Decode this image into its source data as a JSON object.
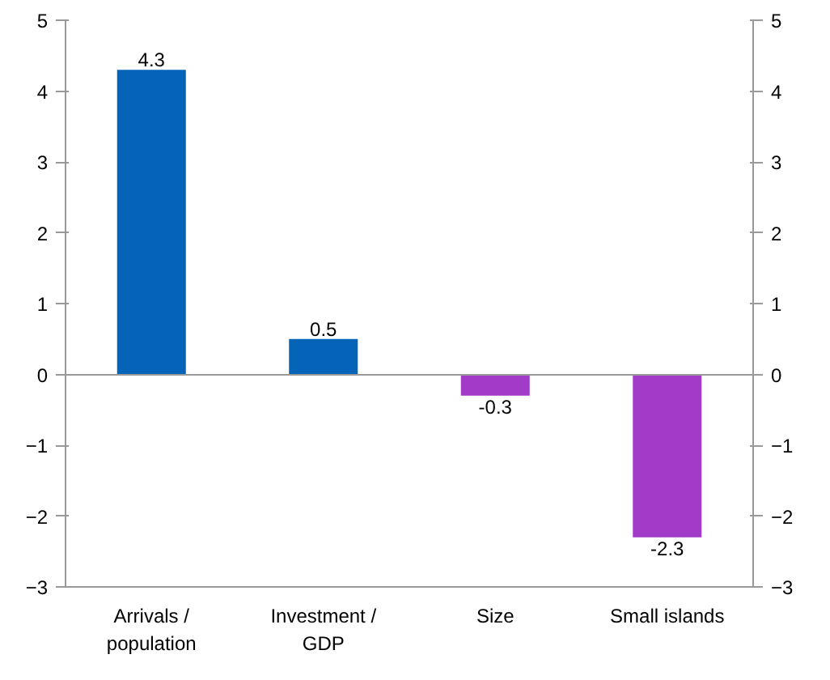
{
  "chart_data": {
    "type": "bar",
    "categories": [
      "Arrivals / population",
      "Investment / GDP",
      "Size",
      "Small islands"
    ],
    "values": [
      4.3,
      0.5,
      -0.3,
      -2.3
    ],
    "colors": [
      "#0563b8",
      "#0563b8",
      "#a23bc8",
      "#a23bc8"
    ],
    "data_labels": true,
    "ylim": [
      -3,
      5
    ],
    "yticks": [
      -3,
      -2,
      -1,
      0,
      1,
      2,
      3,
      4,
      5
    ],
    "y2lim": [
      -3,
      5
    ],
    "y2ticks": [
      -3,
      -2,
      -1,
      0,
      1,
      2,
      3,
      4,
      5
    ],
    "ref_lines": [
      {
        "axis": "y",
        "value": 0,
        "color": "#999999"
      }
    ],
    "grid": false,
    "legend": false
  }
}
